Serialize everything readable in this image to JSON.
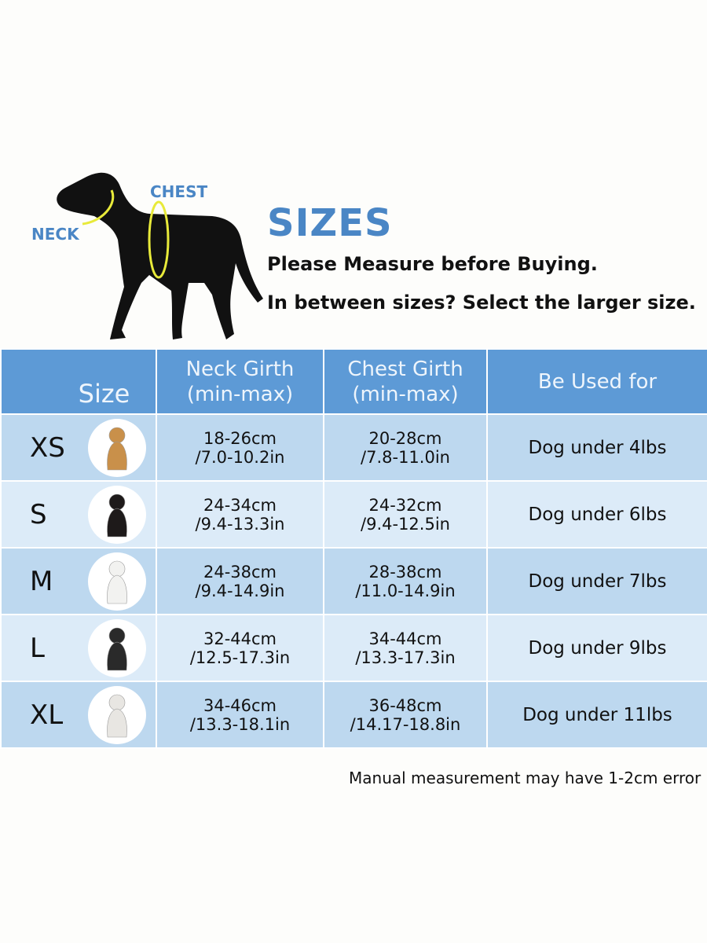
{
  "diagram": {
    "neck_label": "NECK",
    "chest_label": "CHEST"
  },
  "header": {
    "title": "SIZES",
    "line1": "Please Measure before Buying.",
    "line2": "In between sizes? Select the larger size."
  },
  "table": {
    "columns": [
      "Size",
      "Neck Girth\n(min-max)",
      "Chest Girth\n(min-max)",
      "Be Used for"
    ],
    "col_neck_1": "Neck Girth",
    "col_neck_2": "(min-max)",
    "col_chest_1": "Chest Girth",
    "col_chest_2": "(min-max)",
    "rows": [
      {
        "size": "XS",
        "neck_cm": "18-26cm",
        "neck_in": "/7.0-10.2in",
        "chest_cm": "20-28cm",
        "chest_in": "/7.8-11.0in",
        "used_for": "Dog under 4lbs",
        "dog_color": "#c9904a"
      },
      {
        "size": "S",
        "neck_cm": "24-34cm",
        "neck_in": "/9.4-13.3in",
        "chest_cm": "24-32cm",
        "chest_in": "/9.4-12.5in",
        "used_for": "Dog under 6lbs",
        "dog_color": "#1e1a1a"
      },
      {
        "size": "M",
        "neck_cm": "24-38cm",
        "neck_in": "/9.4-14.9in",
        "chest_cm": "28-38cm",
        "chest_in": "/11.0-14.9in",
        "used_for": "Dog under 7lbs",
        "dog_color": "#f2f2f0"
      },
      {
        "size": "L",
        "neck_cm": "32-44cm",
        "neck_in": "/12.5-17.3in",
        "chest_cm": "34-44cm",
        "chest_in": "/13.3-17.3in",
        "used_for": "Dog under 9lbs",
        "dog_color": "#2a2a2a"
      },
      {
        "size": "XL",
        "neck_cm": "34-46cm",
        "neck_in": "/13.3-18.1in",
        "chest_cm": "36-48cm",
        "chest_in": "/14.17-18.8in",
        "used_for": "Dog under 11lbs",
        "dog_color": "#e8e6e2"
      }
    ]
  },
  "footer_note": "Manual measurement may have 1-2cm error",
  "colors": {
    "accent": "#4a86c5",
    "header_bg": "#5d9ad6",
    "row_odd": "#bdd8ef",
    "row_even": "#dcebf8",
    "collar": "#e8ea3a"
  }
}
